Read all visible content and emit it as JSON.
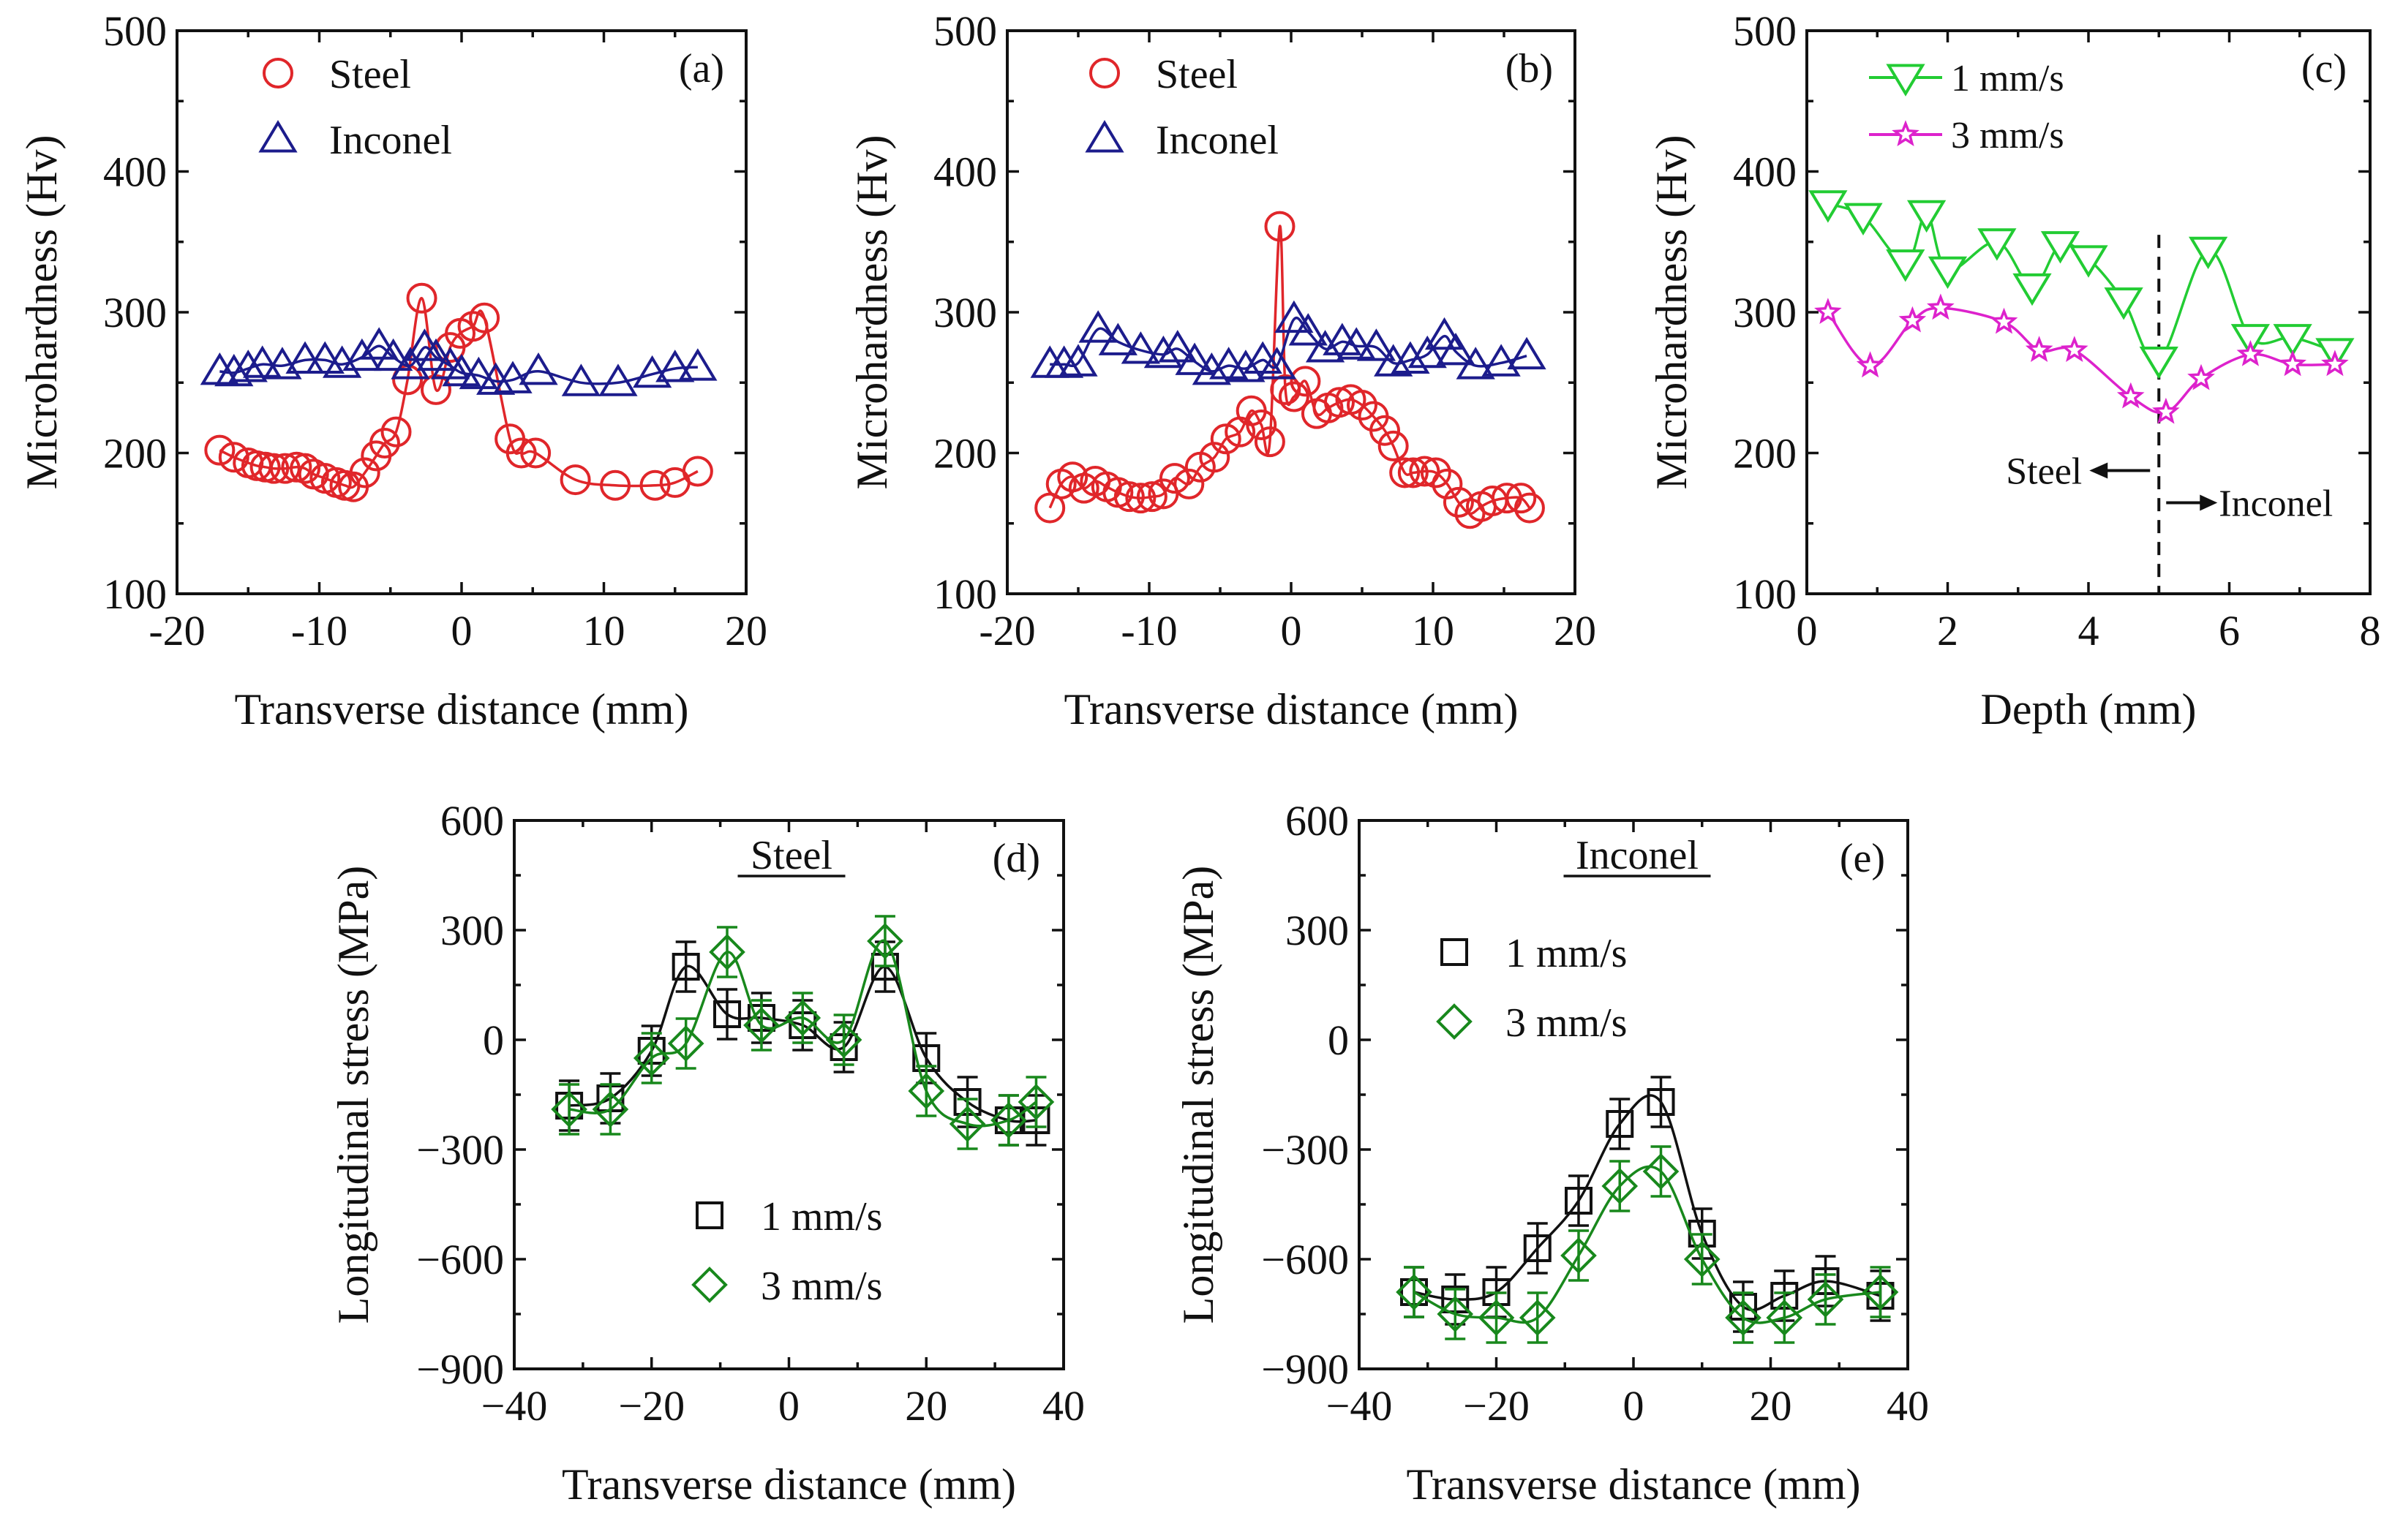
{
  "chart_data": [
    {
      "id": "a",
      "type": "scatter",
      "tag": "(a)",
      "xlabel": "Transverse distance (mm)",
      "ylabel": "Microhardness (Hv)",
      "xlim": [
        -20,
        20
      ],
      "ylim": [
        100,
        500
      ],
      "xticks": [
        "-20",
        "-10",
        "0",
        "10",
        "20"
      ],
      "yticks": [
        "100",
        "200",
        "300",
        "400",
        "500"
      ],
      "series": [
        {
          "name": "Steel",
          "marker": "circle",
          "color": "#e0262a",
          "x": [
            -17,
            -16,
            -15,
            -14.4,
            -13.8,
            -13.2,
            -12.4,
            -11.6,
            -11,
            -10.4,
            -9.6,
            -8.8,
            -8.2,
            -7.6,
            -6.8,
            -6,
            -5.4,
            -4.6,
            -3.8,
            -2.8,
            -1.8,
            -0.8,
            -0.1,
            0.8,
            1.6,
            3.4,
            4.2,
            5.2,
            8,
            10.8,
            13.6,
            15,
            16.6
          ],
          "y": [
            202,
            197,
            193,
            191,
            190,
            189,
            189,
            190,
            189,
            185,
            182,
            179,
            177,
            176,
            186,
            198,
            207,
            215,
            252,
            310,
            245,
            275,
            285,
            290,
            296,
            210,
            200,
            200,
            181,
            177,
            177,
            179,
            187
          ]
        },
        {
          "name": "Inconel",
          "marker": "triangle",
          "color": "#1c1c8c",
          "x": [
            -17,
            -16,
            -15,
            -14,
            -12.6,
            -11,
            -9.6,
            -8.4,
            -7,
            -5.8,
            -4.8,
            -3.6,
            -2.6,
            -1.8,
            -0.8,
            0,
            1.2,
            2.4,
            3.6,
            5.4,
            8.4,
            11,
            13.4,
            15,
            16.6
          ],
          "y": [
            258,
            257,
            260,
            263,
            262,
            266,
            266,
            263,
            268,
            276,
            268,
            262,
            275,
            268,
            262,
            257,
            255,
            251,
            252,
            258,
            250,
            250,
            256,
            260,
            261
          ]
        }
      ]
    },
    {
      "id": "b",
      "type": "scatter",
      "tag": "(b)",
      "xlabel": "Transverse distance (mm)",
      "ylabel": "Microhardness (Hv)",
      "xlim": [
        -20,
        20
      ],
      "ylim": [
        100,
        500
      ],
      "xticks": [
        "-20",
        "-10",
        "0",
        "10",
        "20"
      ],
      "yticks": [
        "100",
        "200",
        "300",
        "400",
        "500"
      ],
      "series": [
        {
          "name": "Steel",
          "marker": "circle",
          "color": "#e0262a",
          "x": [
            -17,
            -16.2,
            -15.4,
            -14.6,
            -13.8,
            -13,
            -12.2,
            -11.4,
            -10.6,
            -9.8,
            -9,
            -8.2,
            -7.2,
            -6.4,
            -5.4,
            -4.6,
            -3.6,
            -2.8,
            -2.1,
            -1.5,
            -0.8,
            -0.4,
            0.2,
            1,
            1.8,
            2.6,
            3.4,
            4.2,
            5,
            5.8,
            6.6,
            7.2,
            8,
            8.6,
            9.4,
            10.2,
            11,
            11.8,
            12.6,
            13.4,
            14.2,
            15.2,
            16.2,
            16.8
          ],
          "y": [
            161,
            178,
            183,
            175,
            180,
            176,
            172,
            169,
            168,
            169,
            171,
            182,
            178,
            190,
            197,
            210,
            215,
            230,
            220,
            208,
            361,
            245,
            240,
            251,
            228,
            232,
            236,
            238,
            234,
            226,
            216,
            205,
            186,
            186,
            187,
            186,
            178,
            165,
            157,
            162,
            166,
            168,
            168,
            161
          ]
        },
        {
          "name": "Inconel",
          "marker": "triangle",
          "color": "#1c1c8c",
          "x": [
            -17,
            -16,
            -15,
            -13.6,
            -12.2,
            -10.6,
            -9,
            -8,
            -6.8,
            -5.6,
            -4.4,
            -3.2,
            -2,
            -1,
            0.2,
            1.2,
            2.4,
            3.6,
            4.6,
            6,
            7.2,
            8.4,
            9.6,
            10.8,
            11.6,
            13,
            14.8,
            16.6
          ],
          "y": [
            263,
            263,
            264,
            288,
            279,
            273,
            270,
            274,
            265,
            258,
            262,
            260,
            266,
            262,
            295,
            286,
            274,
            279,
            276,
            275,
            264,
            266,
            270,
            283,
            272,
            262,
            264,
            269
          ]
        }
      ]
    },
    {
      "id": "c",
      "type": "line",
      "tag": "(c)",
      "xlabel": "Depth (mm)",
      "ylabel": "Microhardness (Hv)",
      "xlim": [
        0,
        8
      ],
      "ylim": [
        100,
        500
      ],
      "xticks": [
        "0",
        "2",
        "4",
        "6",
        "8"
      ],
      "yticks": [
        "100",
        "200",
        "300",
        "400",
        "500"
      ],
      "annotations": [
        "Steel",
        "Inconel"
      ],
      "divider_x": 5,
      "series": [
        {
          "name": "1 mm/s",
          "marker": "triangle-down",
          "color": "#22cc33",
          "x": [
            0.3,
            0.8,
            1.4,
            1.7,
            2,
            2.7,
            3.2,
            3.6,
            4,
            4.5,
            5,
            5.7,
            6.3,
            6.9,
            7.5
          ],
          "y": [
            377,
            368,
            335,
            370,
            330,
            350,
            318,
            348,
            338,
            308,
            266,
            344,
            282,
            282,
            272
          ]
        },
        {
          "name": "3 mm/s",
          "marker": "star",
          "color": "#dd22cc",
          "x": [
            0.3,
            0.9,
            1.5,
            1.9,
            2.8,
            3.3,
            3.8,
            4.6,
            5.1,
            5.6,
            6.3,
            6.9,
            7.5
          ],
          "y": [
            300,
            262,
            294,
            303,
            293,
            273,
            273,
            240,
            229,
            253,
            270,
            263,
            263
          ]
        }
      ]
    },
    {
      "id": "d",
      "type": "line",
      "tag": "(d)",
      "heading": "Steel",
      "xlabel": "Transverse distance (mm)",
      "ylabel": "Longitudinal stress (MPa)",
      "xlim": [
        -40,
        40
      ],
      "ylim": [
        -900,
        600
      ],
      "xticks": [
        "−40",
        "−20",
        "0",
        "20",
        "40"
      ],
      "yticks": [
        "600",
        "300",
        "0",
        "−300",
        "−600",
        "−900"
      ],
      "series": [
        {
          "name": "1 mm/s",
          "marker": "square",
          "color": "#111111",
          "x": [
            -32,
            -26,
            -20,
            -15,
            -9,
            -4,
            2,
            8,
            14,
            20,
            26,
            32,
            36
          ],
          "y": [
            -180,
            -160,
            -30,
            200,
            70,
            60,
            40,
            -20,
            200,
            -50,
            -170,
            -220,
            -220
          ]
        },
        {
          "name": "3 mm/s",
          "marker": "diamond",
          "color": "#18881c",
          "x": [
            -32,
            -26,
            -20,
            -15,
            -9,
            -4,
            2,
            8,
            14,
            20,
            26,
            32,
            36
          ],
          "y": [
            -190,
            -190,
            -50,
            -10,
            240,
            40,
            60,
            0,
            270,
            -140,
            -230,
            -220,
            -170
          ]
        }
      ]
    },
    {
      "id": "e",
      "type": "line",
      "tag": "(e)",
      "heading": "Inconel",
      "xlabel": "Transverse distance (mm)",
      "ylabel": "Longitudinal stress (MPa)",
      "xlim": [
        -40,
        40
      ],
      "ylim": [
        -900,
        600
      ],
      "xticks": [
        "−40",
        "−20",
        "0",
        "20",
        "40"
      ],
      "yticks": [
        "600",
        "300",
        "0",
        "−300",
        "−600",
        "−900"
      ],
      "series": [
        {
          "name": "1 mm/s",
          "marker": "square",
          "color": "#111111",
          "x": [
            -32,
            -26,
            -20,
            -14,
            -8,
            -2,
            4,
            10,
            16,
            22,
            28,
            36
          ],
          "y": [
            -690,
            -710,
            -690,
            -570,
            -440,
            -230,
            -170,
            -530,
            -730,
            -700,
            -660,
            -700
          ]
        },
        {
          "name": "3 mm/s",
          "marker": "diamond",
          "color": "#18881c",
          "x": [
            -32,
            -26,
            -20,
            -14,
            -8,
            -2,
            4,
            10,
            16,
            22,
            28,
            36
          ],
          "y": [
            -690,
            -750,
            -760,
            -760,
            -590,
            -400,
            -360,
            -600,
            -760,
            -760,
            -710,
            -690
          ]
        }
      ]
    }
  ]
}
